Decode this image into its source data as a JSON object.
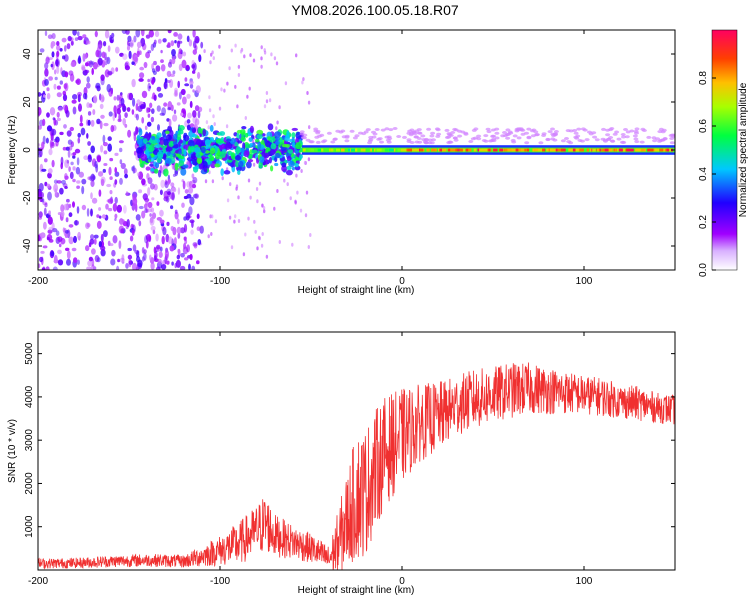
{
  "page_title": "YM08.2026.100.05.18.R07",
  "chart_data": [
    {
      "type": "heatmap",
      "title": "",
      "xlabel": "Height of straight line (km)",
      "ylabel": "Frequency (Hz)",
      "xlim": [
        -200,
        150
      ],
      "ylim": [
        -50,
        50
      ],
      "xticks": [
        -200,
        -100,
        0,
        100
      ],
      "yticks": [
        -40,
        -20,
        0,
        20,
        40
      ],
      "colorbar": {
        "label": "Normalized spectral amplitude",
        "range": [
          0,
          1
        ],
        "ticks": [
          "0.0",
          "0.2",
          "0.4",
          "0.6",
          "0.8"
        ],
        "colormap": [
          "#ffffff",
          "#a000ff",
          "#2000ff",
          "#00c8ff",
          "#00ff40",
          "#a8ff00",
          "#ffc000",
          "#ff4000",
          "#ff0060"
        ]
      },
      "features": [
        {
          "x_range": [
            -200,
            -110
          ],
          "f_range": [
            -50,
            50
          ],
          "amplitude": 0.1,
          "pattern": "scattered noise"
        },
        {
          "x_range": [
            -145,
            -55
          ],
          "f_range": [
            -8,
            8
          ],
          "amplitude": 0.25,
          "pattern": "broadened band"
        },
        {
          "x_range": [
            -55,
            150
          ],
          "f_range": [
            -2,
            4
          ],
          "amplitude": 0.9,
          "pattern": "narrow band near 0 Hz"
        }
      ]
    },
    {
      "type": "line",
      "title": "",
      "xlabel": "Height of straight line (km)",
      "ylabel": "SNR (10 * v/v)",
      "xlim": [
        -200,
        150
      ],
      "ylim": [
        0,
        5500
      ],
      "xticks": [
        -200,
        -100,
        0,
        100
      ],
      "yticks": [
        1000,
        2000,
        3000,
        4000,
        5000
      ],
      "line_color": "#f03030",
      "x": [
        -200,
        -180,
        -160,
        -140,
        -120,
        -110,
        -100,
        -90,
        -80,
        -75,
        -70,
        -60,
        -50,
        -40,
        -35,
        -30,
        -25,
        -20,
        -15,
        -10,
        -5,
        0,
        10,
        20,
        30,
        40,
        50,
        60,
        70,
        80,
        90,
        100,
        110,
        120,
        130,
        140,
        150
      ],
      "y": [
        150,
        160,
        200,
        230,
        200,
        320,
        450,
        600,
        900,
        1100,
        800,
        650,
        500,
        250,
        600,
        1200,
        1700,
        1800,
        2300,
        2700,
        2900,
        3100,
        3400,
        3550,
        3800,
        3950,
        4050,
        4150,
        4200,
        4150,
        4100,
        4050,
        4000,
        3900,
        3850,
        3750,
        3700
      ],
      "y_spread": [
        120,
        120,
        140,
        150,
        150,
        250,
        350,
        500,
        600,
        700,
        500,
        400,
        350,
        300,
        800,
        1100,
        1500,
        1500,
        1400,
        1300,
        1200,
        1100,
        900,
        800,
        700,
        700,
        650,
        650,
        600,
        550,
        500,
        450,
        450,
        400,
        400,
        350,
        350
      ]
    }
  ]
}
